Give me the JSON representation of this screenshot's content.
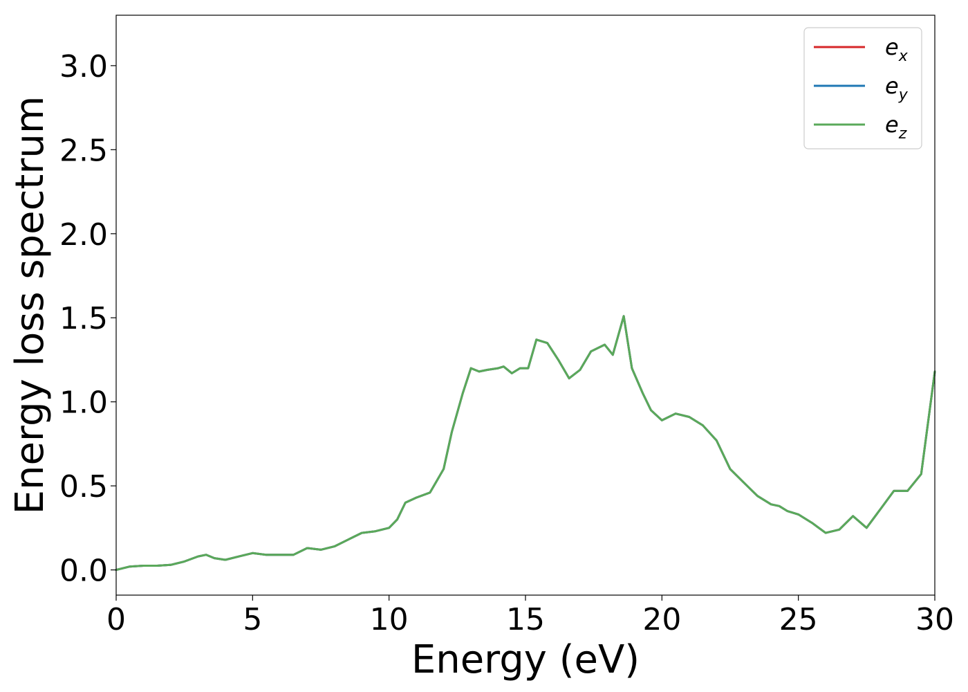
{
  "chart_data": {
    "type": "line",
    "title": "",
    "xlabel": "Energy (eV)",
    "ylabel": "Energy loss spectrum",
    "xlim": [
      0,
      30
    ],
    "ylim": [
      -0.15,
      3.3
    ],
    "xticks": [
      0,
      5,
      10,
      15,
      20,
      25,
      30
    ],
    "xtick_labels": [
      "0",
      "5",
      "10",
      "15",
      "20",
      "25",
      "30"
    ],
    "yticks": [
      0.0,
      0.5,
      1.0,
      1.5,
      2.0,
      2.5,
      3.0
    ],
    "ytick_labels": [
      "0.0",
      "0.5",
      "1.0",
      "1.5",
      "2.0",
      "2.5",
      "3.0"
    ],
    "grid": false,
    "legend_position": "top-right",
    "series": [
      {
        "name": "e_x",
        "legend_base": "e",
        "legend_sub": "x",
        "color": "#d62728",
        "x": [
          0,
          0.5,
          1,
          1.5,
          2,
          2.5,
          3,
          3.3,
          3.6,
          4,
          4.5,
          5,
          5.5,
          6,
          6.5,
          7,
          7.5,
          8,
          8.5,
          9,
          9.5,
          10,
          10.3,
          10.6,
          11,
          11.5,
          12,
          12.3,
          12.7,
          13,
          13.3,
          13.6,
          14,
          14.2,
          14.5,
          14.8,
          15.1,
          15.4,
          15.8,
          16.2,
          16.6,
          17,
          17.4,
          17.9,
          18.2,
          18.6,
          18.9,
          19.3,
          19.6,
          20,
          20.5,
          21,
          21.5,
          22,
          22.5,
          23,
          23.5,
          24,
          24.3,
          24.6,
          25,
          25.5,
          26,
          26.5,
          27,
          27.5,
          28,
          28.5,
          29,
          29.5,
          30
        ],
        "y": [
          0.0,
          0.02,
          0.025,
          0.025,
          0.03,
          0.05,
          0.08,
          0.09,
          0.07,
          0.06,
          0.08,
          0.1,
          0.09,
          0.09,
          0.09,
          0.13,
          0.12,
          0.14,
          0.18,
          0.22,
          0.23,
          0.25,
          0.3,
          0.4,
          0.43,
          0.46,
          0.6,
          0.82,
          1.05,
          1.2,
          1.18,
          1.19,
          1.2,
          1.21,
          1.17,
          1.2,
          1.2,
          1.37,
          1.35,
          1.25,
          1.14,
          1.19,
          1.3,
          1.34,
          1.28,
          1.51,
          1.2,
          1.05,
          0.95,
          0.89,
          0.93,
          0.91,
          0.86,
          0.77,
          0.6,
          0.52,
          0.44,
          0.39,
          0.38,
          0.35,
          0.33,
          0.28,
          0.22,
          0.24,
          0.32,
          0.25,
          0.36,
          0.47,
          0.47,
          0.57,
          1.18
        ]
      },
      {
        "name": "e_y",
        "legend_base": "e",
        "legend_sub": "y",
        "color": "#1f77b4",
        "x": [
          0,
          0.5,
          1,
          1.5,
          2,
          2.5,
          3,
          3.3,
          3.6,
          4,
          4.5,
          5,
          5.5,
          6,
          6.5,
          7,
          7.5,
          8,
          8.5,
          9,
          9.5,
          10,
          10.3,
          10.6,
          11,
          11.5,
          12,
          12.3,
          12.7,
          13,
          13.3,
          13.6,
          14,
          14.2,
          14.5,
          14.8,
          15.1,
          15.4,
          15.8,
          16.2,
          16.6,
          17,
          17.4,
          17.9,
          18.2,
          18.6,
          18.9,
          19.3,
          19.6,
          20,
          20.5,
          21,
          21.5,
          22,
          22.5,
          23,
          23.5,
          24,
          24.3,
          24.6,
          25,
          25.5,
          26,
          26.5,
          27,
          27.5,
          28,
          28.5,
          29,
          29.5,
          30
        ],
        "y": [
          0.0,
          0.02,
          0.025,
          0.025,
          0.03,
          0.05,
          0.08,
          0.09,
          0.07,
          0.06,
          0.08,
          0.1,
          0.09,
          0.09,
          0.09,
          0.13,
          0.12,
          0.14,
          0.18,
          0.22,
          0.23,
          0.25,
          0.3,
          0.4,
          0.43,
          0.46,
          0.6,
          0.82,
          1.05,
          1.2,
          1.18,
          1.19,
          1.2,
          1.21,
          1.17,
          1.2,
          1.2,
          1.37,
          1.35,
          1.25,
          1.14,
          1.19,
          1.3,
          1.34,
          1.28,
          1.51,
          1.2,
          1.05,
          0.95,
          0.89,
          0.93,
          0.91,
          0.86,
          0.77,
          0.6,
          0.52,
          0.44,
          0.39,
          0.38,
          0.35,
          0.33,
          0.28,
          0.22,
          0.24,
          0.32,
          0.25,
          0.36,
          0.47,
          0.47,
          0.57,
          1.18
        ]
      },
      {
        "name": "e_z",
        "legend_base": "e",
        "legend_sub": "z",
        "color": "#5aa95a",
        "x": [
          0,
          0.5,
          1,
          1.5,
          2,
          2.5,
          3,
          3.3,
          3.6,
          4,
          4.5,
          5,
          5.5,
          6,
          6.5,
          7,
          7.5,
          8,
          8.5,
          9,
          9.5,
          10,
          10.3,
          10.6,
          11,
          11.5,
          12,
          12.3,
          12.7,
          13,
          13.3,
          13.6,
          14,
          14.2,
          14.5,
          14.8,
          15.1,
          15.4,
          15.8,
          16.2,
          16.6,
          17,
          17.4,
          17.9,
          18.2,
          18.6,
          18.9,
          19.3,
          19.6,
          20,
          20.5,
          21,
          21.5,
          22,
          22.5,
          23,
          23.5,
          24,
          24.3,
          24.6,
          25,
          25.5,
          26,
          26.5,
          27,
          27.5,
          28,
          28.5,
          29,
          29.5,
          30
        ],
        "y": [
          0.0,
          0.02,
          0.025,
          0.025,
          0.03,
          0.05,
          0.08,
          0.09,
          0.07,
          0.06,
          0.08,
          0.1,
          0.09,
          0.09,
          0.09,
          0.13,
          0.12,
          0.14,
          0.18,
          0.22,
          0.23,
          0.25,
          0.3,
          0.4,
          0.43,
          0.46,
          0.6,
          0.82,
          1.05,
          1.2,
          1.18,
          1.19,
          1.2,
          1.21,
          1.17,
          1.2,
          1.2,
          1.37,
          1.35,
          1.25,
          1.14,
          1.19,
          1.3,
          1.34,
          1.28,
          1.51,
          1.2,
          1.05,
          0.95,
          0.89,
          0.93,
          0.91,
          0.86,
          0.77,
          0.6,
          0.52,
          0.44,
          0.39,
          0.38,
          0.35,
          0.33,
          0.28,
          0.22,
          0.24,
          0.32,
          0.25,
          0.36,
          0.47,
          0.47,
          0.57,
          1.18
        ]
      }
    ]
  }
}
